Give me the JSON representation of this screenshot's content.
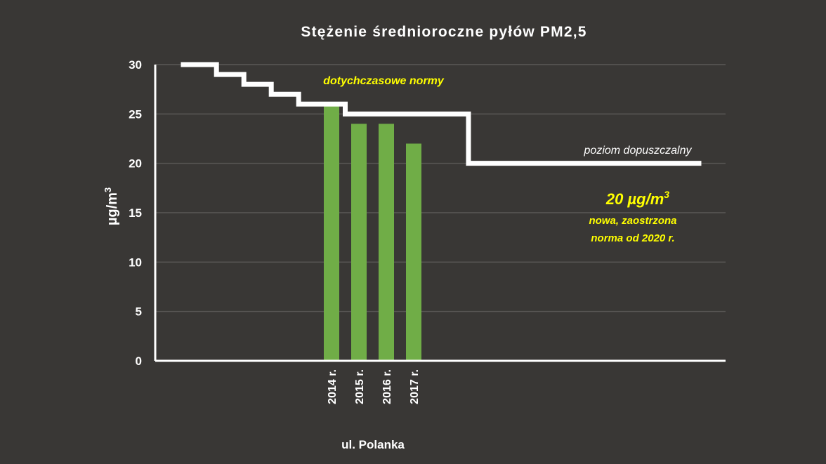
{
  "colors": {
    "background": "#393735",
    "bar": "#70ad47",
    "limit_line": "#ffffff",
    "gridline": "#5a5856",
    "axis": "#ffffff",
    "text": "#ffffff",
    "highlight": "#ffff00"
  },
  "chart_data": {
    "type": "bar",
    "title": "Stężenie średnioroczne pyłów PM2,5",
    "xlabel": "ul. Polanka",
    "ylabel_main": "µg/m",
    "ylabel_sup": "3",
    "ylim": [
      0,
      30
    ],
    "yticks": [
      "0",
      "5",
      "10",
      "15",
      "20",
      "25",
      "30"
    ],
    "grid": true,
    "categories": [
      "2014 r.",
      "2015 r.",
      "2016 r.",
      "2017 r."
    ],
    "values": [
      26,
      24,
      24,
      22
    ],
    "limit_line": {
      "label": "poziom dopuszczalny",
      "steps": [
        {
          "x0": 2008.5,
          "x1": 2009.8,
          "y": 30
        },
        {
          "x0": 2009.8,
          "x1": 2010.8,
          "y": 29
        },
        {
          "x0": 2010.8,
          "x1": 2011.8,
          "y": 28
        },
        {
          "x0": 2011.8,
          "x1": 2012.8,
          "y": 27
        },
        {
          "x0": 2012.8,
          "x1": 2014.5,
          "y": 26
        },
        {
          "x0": 2014.5,
          "x1": 2019.0,
          "y": 25
        },
        {
          "x0": 2019.0,
          "x1": 2027.5,
          "y": 20
        }
      ]
    },
    "annotations": {
      "old_norms": "dotychczasowe normy",
      "new_value_main": "20 µg/m",
      "new_value_sup": "3",
      "new_line1": "nowa, zaostrzona",
      "new_line2": "norma od 2020 r."
    }
  }
}
